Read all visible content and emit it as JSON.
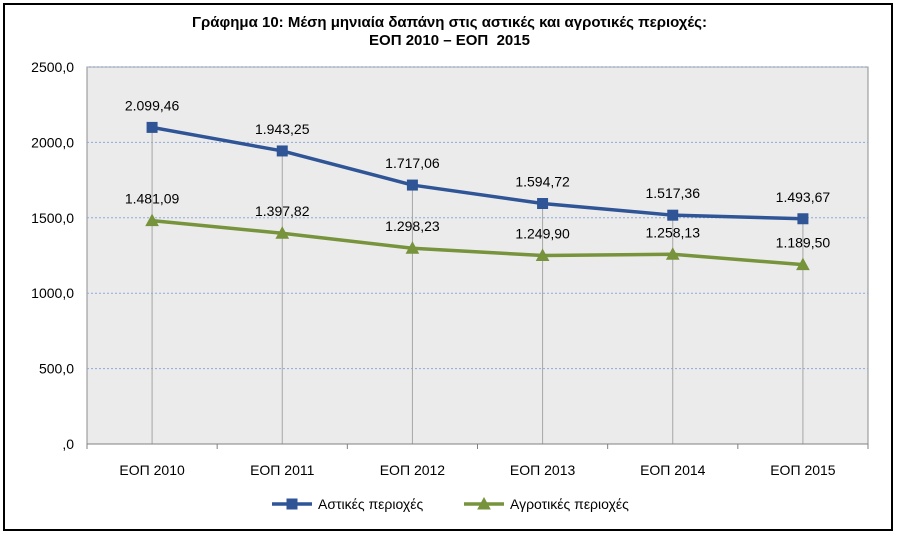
{
  "chart_data": {
    "type": "line",
    "title": "Γράφημα 10: Μέση μηνιαία δαπάνη στις αστικές και αγροτικές περιοχές:",
    "subtitle": "ΕΟΠ 2010 – ΕΟΠ  2015",
    "categories": [
      "ΕΟΠ 2010",
      "ΕΟΠ 2011",
      "ΕΟΠ 2012",
      "ΕΟΠ 2013",
      "ΕΟΠ 2014",
      "ΕΟΠ 2015"
    ],
    "ylim": [
      0,
      2500
    ],
    "yticks": [
      0,
      500,
      1000,
      1500,
      2000,
      2500
    ],
    "ytick_labels": [
      ",0",
      "500,0",
      "1000,0",
      "1500,0",
      "2000,0",
      "2500,0"
    ],
    "grid": true,
    "legend_position": "bottom",
    "series": [
      {
        "name": "Αστικές περιοχές",
        "values": [
          2099.46,
          1943.25,
          1717.06,
          1594.72,
          1517.36,
          1493.67
        ],
        "labels": [
          "2.099,46",
          "1.943,25",
          "1.717,06",
          "1.594,72",
          "1.517,36",
          "1.493,67"
        ],
        "color": "#2F5597",
        "marker": "square"
      },
      {
        "name": "Αγροτικές περιοχές",
        "values": [
          1481.09,
          1397.82,
          1298.23,
          1249.9,
          1258.13,
          1189.5
        ],
        "labels": [
          "1.481,09",
          "1.397,82",
          "1.298,23",
          "1.249,90",
          "1.258,13",
          "1.189,50"
        ],
        "color": "#77933C",
        "marker": "triangle"
      }
    ]
  }
}
